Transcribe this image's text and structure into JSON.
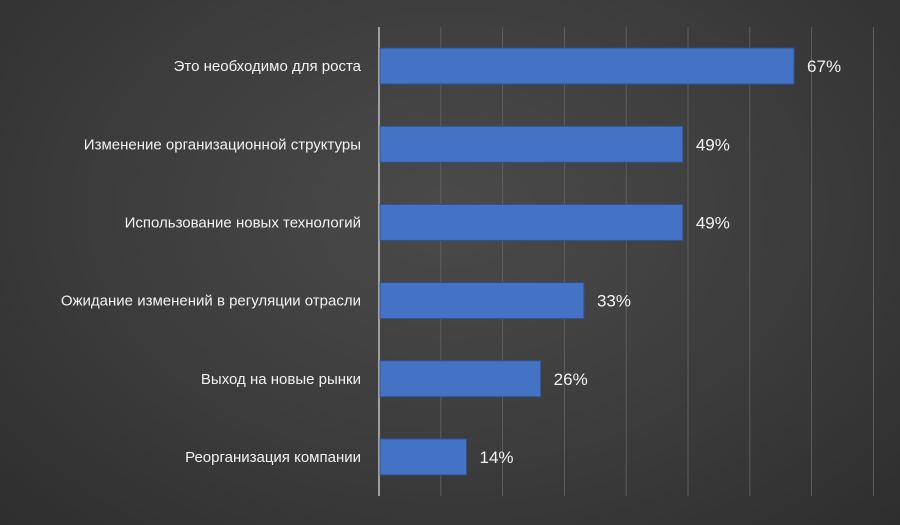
{
  "chart_data": {
    "type": "bar",
    "orientation": "horizontal",
    "categories": [
      "Это необходимо для роста",
      "Изменение организационной структуры",
      "Использование новых технологий",
      "Ожидание изменений в регуляции отрасли",
      "Выход на новые рынки",
      "Реорганизация компании"
    ],
    "values": [
      67,
      49,
      49,
      33,
      26,
      14
    ],
    "value_labels": [
      "67%",
      "49%",
      "49%",
      "33%",
      "26%",
      "14%"
    ],
    "unit": "%",
    "xlim": [
      0,
      80
    ],
    "grid": true,
    "title": "",
    "xlabel": "",
    "ylabel": ""
  },
  "colors": {
    "bar": "#4472c4",
    "bar_edge": "#2f528f",
    "grid": "#5e5e5e",
    "axis": "#bfbfbf",
    "category_text": "#f2f2f2",
    "value_text": "#f2f2f2"
  }
}
